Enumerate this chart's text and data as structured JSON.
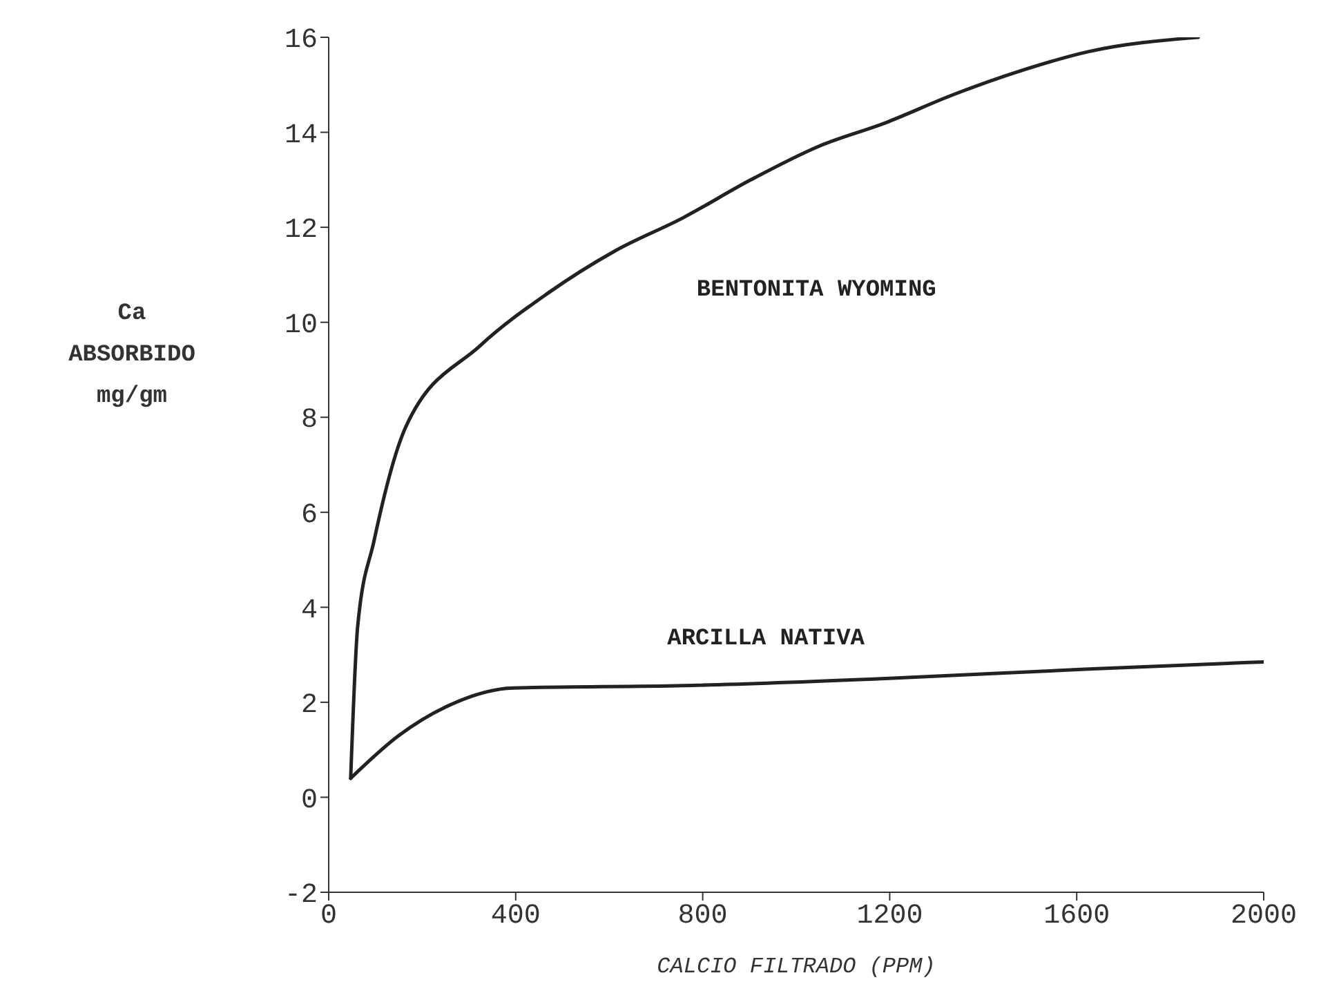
{
  "chart_data": {
    "type": "line",
    "xlabel": "CALCIO   FILTRADO   (PPM)",
    "ylabel": "Ca\nABSORBIDO\nmg/gm",
    "xlim": [
      0,
      2000
    ],
    "xticks": [
      0,
      400,
      800,
      1200,
      1600,
      2000
    ],
    "ylim": [
      -2,
      16
    ],
    "yticks": [
      -2,
      0,
      2,
      4,
      6,
      8,
      10,
      12,
      14,
      16
    ],
    "grid": false,
    "legend": false,
    "marker": "none",
    "line_style": "solid",
    "series": [
      {
        "name": "BENTONITA WYOMING",
        "color": "#222222",
        "x": [
          47,
          62,
          97,
          165,
          323,
          467,
          612,
          758,
          903,
          1047,
          1191,
          1338,
          1482,
          1626,
          1860
        ],
        "values": [
          0.4,
          3.6,
          5.4,
          7.8,
          9.5,
          10.6,
          11.5,
          12.2,
          13.0,
          13.7,
          14.2,
          14.8,
          15.3,
          15.7,
          16.0
        ]
      },
      {
        "name": "ARCILLA NATIVA",
        "color": "#222222",
        "x": [
          47,
          150,
          250,
          394,
          758,
          1191,
          1626,
          2000
        ],
        "values": [
          0.4,
          1.3,
          1.9,
          2.3,
          2.35,
          2.5,
          2.7,
          2.85
        ]
      }
    ]
  }
}
